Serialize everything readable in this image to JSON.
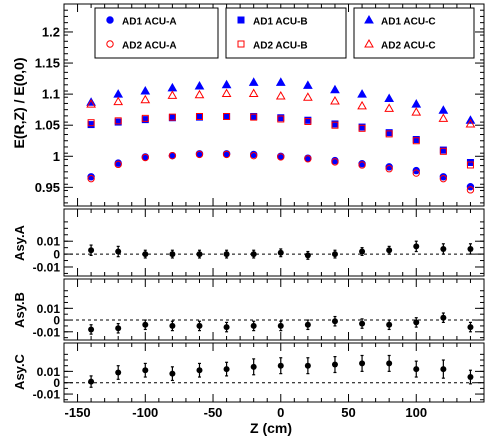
{
  "chart_data": [
    {
      "type": "scatter",
      "panel": "main",
      "ylabel": "E(R,Z) / E(0,0)",
      "ylim": [
        0.92,
        1.245
      ],
      "xlim": [
        -160,
        150
      ],
      "y_ticks": [
        0.95,
        1,
        1.05,
        1.1,
        1.15,
        1.2
      ],
      "y_tick_labels": [
        "0.95",
        "1",
        "1.05",
        "1.1",
        "1.15",
        "1.2"
      ],
      "x": [
        -140,
        -120,
        -100,
        -80,
        -60,
        -40,
        -20,
        0,
        20,
        40,
        60,
        80,
        100,
        120,
        140
      ],
      "legend": "top, 3 columns × 2 rows",
      "series": [
        {
          "name": "AD1 ACU-A",
          "marker": "circle-filled",
          "color": "#0000ff",
          "values": [
            0.967,
            0.989,
            0.999,
            1.001,
            1.004,
            1.004,
            1.003,
            1.0,
            0.997,
            0.993,
            0.988,
            0.983,
            0.977,
            0.967,
            0.951
          ]
        },
        {
          "name": "AD2 ACU-A",
          "marker": "circle-open",
          "color": "#ff0000",
          "values": [
            0.964,
            0.987,
            0.998,
            1.001,
            1.003,
            1.003,
            1.001,
            0.999,
            0.996,
            0.991,
            0.986,
            0.98,
            0.973,
            0.964,
            0.946
          ]
        },
        {
          "name": "AD1 ACU-B",
          "marker": "square-filled",
          "color": "#0000ff",
          "values": [
            1.051,
            1.055,
            1.059,
            1.062,
            1.063,
            1.064,
            1.064,
            1.062,
            1.058,
            1.052,
            1.047,
            1.038,
            1.027,
            1.01,
            0.99
          ]
        },
        {
          "name": "AD2 ACU-B",
          "marker": "square-open",
          "color": "#ff0000",
          "values": [
            1.054,
            1.057,
            1.061,
            1.063,
            1.064,
            1.064,
            1.063,
            1.06,
            1.056,
            1.05,
            1.045,
            1.036,
            1.025,
            1.008,
            0.986
          ]
        },
        {
          "name": "AD1 ACU-C",
          "marker": "triangle-filled",
          "color": "#0000ff",
          "values": [
            1.087,
            1.1,
            1.105,
            1.11,
            1.113,
            1.115,
            1.119,
            1.119,
            1.114,
            1.107,
            1.1,
            1.093,
            1.084,
            1.074,
            1.058
          ]
        },
        {
          "name": "AD2 ACU-C",
          "marker": "triangle-open",
          "color": "#ff0000",
          "values": [
            1.084,
            1.088,
            1.091,
            1.098,
            1.099,
            1.101,
            1.101,
            1.097,
            1.095,
            1.089,
            1.081,
            1.077,
            1.071,
            1.061,
            1.052
          ]
        }
      ]
    },
    {
      "type": "scatter",
      "panel": "asym-a",
      "ylabel": "Asy.A",
      "ylim": [
        -0.017,
        0.035
      ],
      "y_ticks": [
        -0.01,
        0,
        0.01
      ],
      "y_tick_labels": [
        "-0.01",
        "0",
        "0.01"
      ],
      "x": [
        -140,
        -120,
        -100,
        -80,
        -60,
        -40,
        -20,
        0,
        20,
        40,
        60,
        80,
        100,
        120,
        140
      ],
      "series": [
        {
          "name": "",
          "values": [
            0.003,
            0.002,
            0.0,
            0.0,
            0.0,
            0.0,
            0.0,
            0.001,
            -0.001,
            0.0,
            0.002,
            0.003,
            0.006,
            0.004,
            0.004
          ],
          "errors": [
            0.004,
            0.004,
            0.003,
            0.003,
            0.003,
            0.003,
            0.003,
            0.003,
            0.003,
            0.003,
            0.003,
            0.003,
            0.004,
            0.004,
            0.004
          ]
        }
      ]
    },
    {
      "type": "scatter",
      "panel": "asym-b",
      "ylabel": "Asy.B",
      "ylim": [
        -0.017,
        0.035
      ],
      "y_ticks": [
        -0.01,
        0,
        0.01
      ],
      "y_tick_labels": [
        "-0.01",
        "0",
        "0.01"
      ],
      "x": [
        -140,
        -120,
        -100,
        -80,
        -60,
        -40,
        -20,
        0,
        20,
        40,
        60,
        80,
        100,
        120,
        140
      ],
      "series": [
        {
          "name": "",
          "values": [
            -0.008,
            -0.007,
            -0.004,
            -0.005,
            -0.005,
            -0.006,
            -0.005,
            -0.005,
            -0.004,
            -0.001,
            -0.003,
            -0.004,
            -0.002,
            0.002,
            -0.006
          ],
          "errors": [
            0.004,
            0.004,
            0.004,
            0.004,
            0.004,
            0.004,
            0.004,
            0.004,
            0.004,
            0.004,
            0.004,
            0.004,
            0.004,
            0.004,
            0.004
          ]
        }
      ]
    },
    {
      "type": "scatter",
      "panel": "asym-c",
      "xlabel": "Z (cm)",
      "ylabel": "Asy.C",
      "ylim": [
        -0.017,
        0.035
      ],
      "xlim": [
        -160,
        150
      ],
      "y_ticks": [
        -0.01,
        0,
        0.01
      ],
      "y_tick_labels": [
        "-0.01",
        "0",
        "0.01"
      ],
      "x_ticks": [
        -150,
        -100,
        -50,
        0,
        50,
        100
      ],
      "x_tick_labels": [
        "-150",
        "-100",
        "-50",
        "0",
        "50",
        "100"
      ],
      "x": [
        -140,
        -120,
        -100,
        -80,
        -60,
        -40,
        -20,
        0,
        20,
        40,
        60,
        80,
        100,
        120,
        140
      ],
      "series": [
        {
          "name": "",
          "values": [
            0.001,
            0.009,
            0.011,
            0.008,
            0.011,
            0.012,
            0.014,
            0.015,
            0.015,
            0.016,
            0.017,
            0.017,
            0.012,
            0.012,
            0.005
          ],
          "errors": [
            0.005,
            0.006,
            0.006,
            0.006,
            0.006,
            0.006,
            0.007,
            0.007,
            0.007,
            0.007,
            0.007,
            0.007,
            0.007,
            0.008,
            0.006
          ]
        }
      ]
    }
  ]
}
